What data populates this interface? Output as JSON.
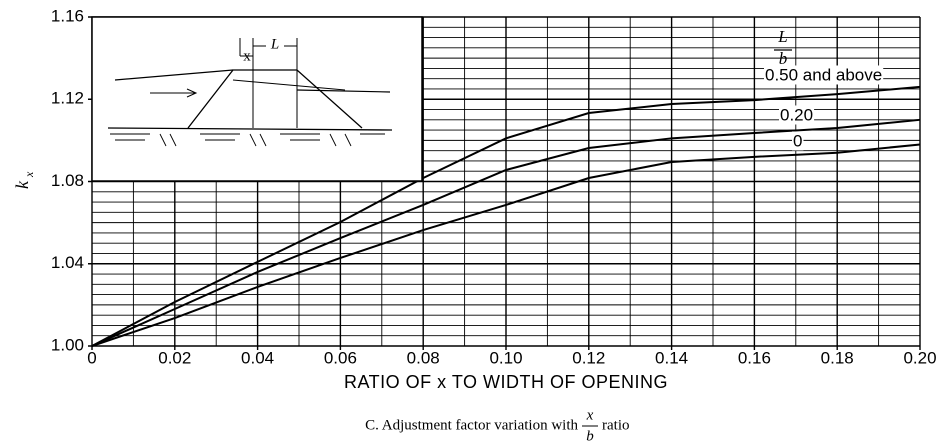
{
  "chart_data": {
    "type": "line",
    "xlabel": "RATIO OF x TO WIDTH OF OPENING",
    "y_label": {
      "symbol": "k",
      "subscript": "x"
    },
    "legend_title": {
      "numerator": "L",
      "denominator": "b"
    },
    "caption": {
      "text": "C. Adjustment factor variation with",
      "fraction_num": "x",
      "fraction_den": "b",
      "suffix": "ratio"
    },
    "inset": {
      "x_label": "x",
      "length_label": "L"
    },
    "x": [
      0,
      0.02,
      0.04,
      0.06,
      0.08,
      0.1,
      0.12,
      0.14,
      0.16,
      0.18,
      0.2
    ],
    "series": [
      {
        "name": "0.50 and above",
        "color": "#000000",
        "values": [
          1.0,
          1.0214,
          1.0409,
          1.0603,
          1.0817,
          1.101,
          1.1133,
          1.1177,
          1.1196,
          1.1225,
          1.126
        ]
      },
      {
        "name": "0.20",
        "color": "#000000",
        "values": [
          1.0,
          1.018,
          1.036,
          1.0525,
          1.0686,
          1.0856,
          1.0963,
          1.101,
          1.1036,
          1.106,
          1.11
        ]
      },
      {
        "name": "0",
        "color": "#000000",
        "values": [
          1.0,
          1.0136,
          1.0287,
          1.0428,
          1.0564,
          1.0686,
          1.0817,
          1.0895,
          1.092,
          1.094,
          1.098
        ]
      }
    ],
    "xlim": [
      0,
      0.2
    ],
    "ylim": [
      1.0,
      1.16
    ],
    "xticks": [
      0,
      0.02,
      0.04,
      0.06,
      0.08,
      {
        "value": 0.1,
        "label": "0.10"
      },
      0.12,
      0.14,
      0.16,
      0.18,
      {
        "value": 0.2,
        "label": "0.20"
      }
    ],
    "yticks": [
      {
        "value": 1.0,
        "label": "1.00"
      },
      1.04,
      1.08,
      1.12,
      1.16
    ],
    "grid": true,
    "minor_divisions": {
      "x": 2,
      "y": 8
    }
  }
}
